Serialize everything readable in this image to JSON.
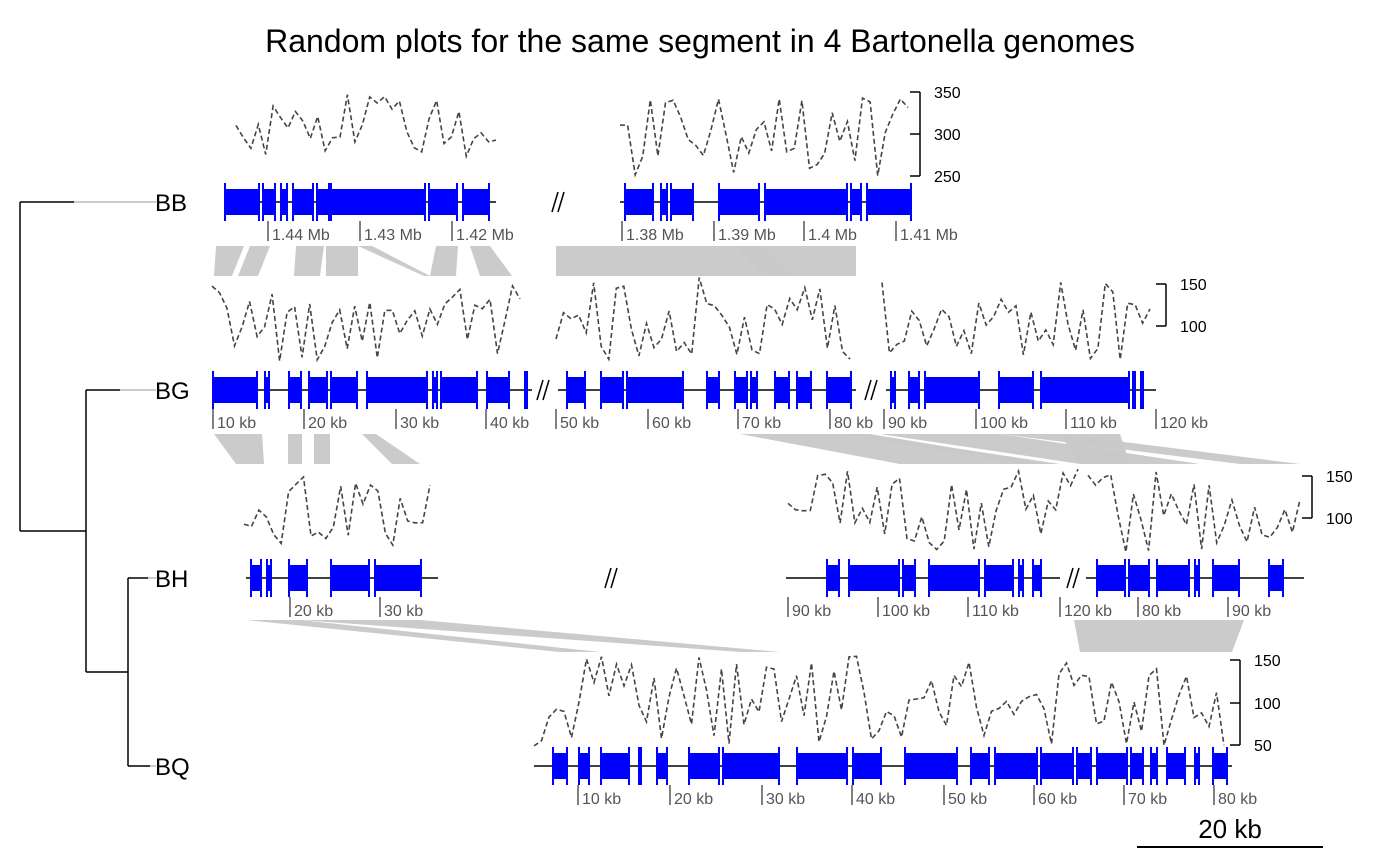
{
  "title": "Random plots for the same segment in 4 Bartonella genomes",
  "scale_bar": "20 kb",
  "colors": {
    "gene": "#0000FF",
    "link": "#C8C8C8",
    "line": "#000000",
    "plot": "#444444",
    "tick": "#555555"
  },
  "tree": {
    "leaves": [
      "BB",
      "BG",
      "BH",
      "BQ"
    ],
    "topology": "((BB),(BG,(BH,BQ)))"
  },
  "genomes": [
    {
      "name": "BB",
      "ticks": [
        "1.44 Mb",
        "1.43 Mb",
        "1.42 Mb",
        "1.38 Mb",
        "1.39 Mb",
        "1.4 Mb",
        "1.41 Mb"
      ],
      "plot_axis": [
        "350",
        "300",
        "250"
      ]
    },
    {
      "name": "BG",
      "ticks": [
        "10 kb",
        "20 kb",
        "30 kb",
        "40 kb",
        "50 kb",
        "60 kb",
        "70 kb",
        "80 kb",
        "90 kb",
        "100 kb",
        "110 kb",
        "120 kb"
      ],
      "plot_axis": [
        "150",
        "100"
      ]
    },
    {
      "name": "BH",
      "ticks": [
        "20 kb",
        "30 kb",
        "90 kb",
        "100 kb",
        "110 kb",
        "120 kb",
        "80 kb",
        "90 kb"
      ],
      "plot_axis": [
        "150",
        "100"
      ]
    },
    {
      "name": "BQ",
      "ticks": [
        "10 kb",
        "20 kb",
        "30 kb",
        "40 kb",
        "50 kb",
        "60 kb",
        "70 kb",
        "80 kb"
      ],
      "plot_axis": [
        "150",
        "100",
        "50"
      ]
    }
  ]
}
